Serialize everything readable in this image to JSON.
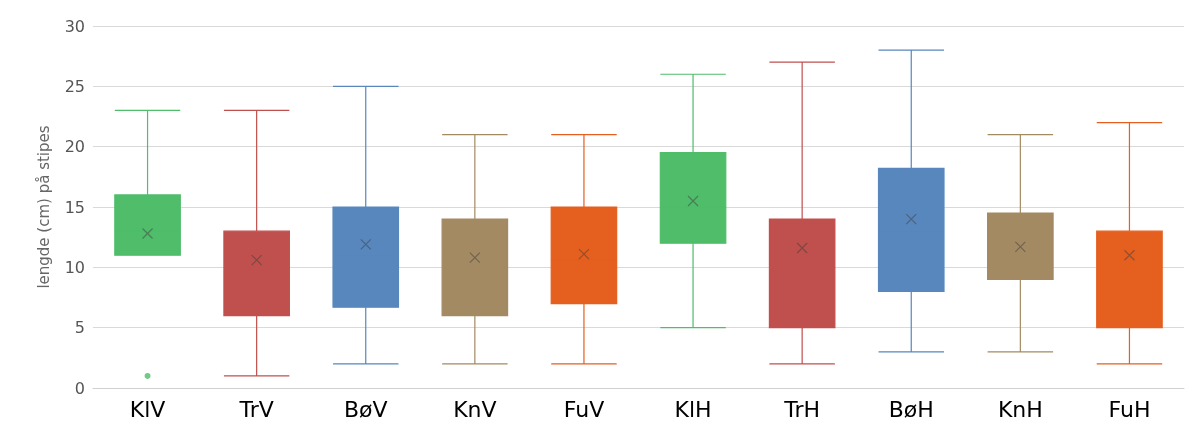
{
  "chart_data": {
    "type": "box",
    "ylabel": "lengde (cm) på stipes",
    "categories": [
      "KlV",
      "TrV",
      "BøV",
      "KnV",
      "FuV",
      "KlH",
      "TrH",
      "BøH",
      "KnH",
      "FuH"
    ],
    "colors": [
      "#4fbd6a",
      "#c0504d",
      "#5787bd",
      "#a38a63",
      "#e55f1f",
      "#4fbd6a",
      "#c0504d",
      "#5787bd",
      "#a38a63",
      "#e55f1f"
    ],
    "boxes": [
      {
        "low": 11,
        "q1": 11,
        "median": 13,
        "q3": 16,
        "high": 23,
        "mean": 12.8,
        "outliers": [
          1
        ]
      },
      {
        "low": 1,
        "q1": 6,
        "median": 10,
        "q3": 13,
        "high": 23,
        "mean": 10.6
      },
      {
        "low": 2,
        "q1": 6.7,
        "median": 11,
        "q3": 15,
        "high": 25,
        "mean": 11.9
      },
      {
        "low": 2,
        "q1": 6,
        "median": 11,
        "q3": 14,
        "high": 21,
        "mean": 10.8
      },
      {
        "low": 2,
        "q1": 7,
        "median": 10.6,
        "q3": 15,
        "high": 21,
        "mean": 11.1
      },
      {
        "low": 5,
        "q1": 12,
        "median": 15,
        "q3": 19.5,
        "high": 26,
        "mean": 15.5
      },
      {
        "low": 2,
        "q1": 5,
        "median": 10,
        "q3": 14,
        "high": 27,
        "mean": 11.6
      },
      {
        "low": 3,
        "q1": 8,
        "median": 13,
        "q3": 18.2,
        "high": 28,
        "mean": 14
      },
      {
        "low": 3,
        "q1": 9,
        "median": 11,
        "q3": 14.5,
        "high": 21,
        "mean": 11.7
      },
      {
        "low": 2,
        "q1": 5,
        "median": 13,
        "q3": 13,
        "high": 22,
        "mean": 11
      }
    ],
    "ylim": [
      0,
      30
    ],
    "yticks": [
      0,
      5,
      10,
      15,
      20,
      25,
      30
    ],
    "grid": "y"
  }
}
